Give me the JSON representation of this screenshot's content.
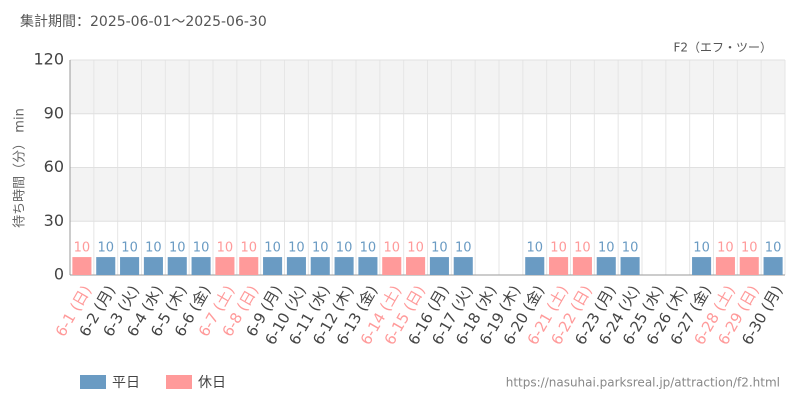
{
  "chart_data": {
    "type": "bar",
    "title": "集計期間：2025-06-01～2025-06-30",
    "subtitle": "F2（エフ・ツー）",
    "y_label": "待ち時間（分） min",
    "source": "https://nasuhai.parksreal.jp/attraction/f2.html",
    "categories": [
      "6-1 (日)",
      "6-2 (月)",
      "6-3 (火)",
      "6-4 (水)",
      "6-5 (木)",
      "6-6 (金)",
      "6-7 (土)",
      "6-8 (日)",
      "6-9 (月)",
      "6-10 (火)",
      "6-11 (水)",
      "6-12 (木)",
      "6-13 (金)",
      "6-14 (土)",
      "6-15 (日)",
      "6-16 (月)",
      "6-17 (火)",
      "6-18 (水)",
      "6-19 (木)",
      "6-20 (金)",
      "6-21 (土)",
      "6-22 (日)",
      "6-23 (月)",
      "6-24 (火)",
      "6-25 (水)",
      "6-26 (木)",
      "6-27 (金)",
      "6-28 (土)",
      "6-29 (日)",
      "6-30 (月)"
    ],
    "series": [
      {
        "name": "平日",
        "color": "#6a9bc3",
        "values": [
          null,
          10,
          10,
          10,
          10,
          10,
          null,
          null,
          10,
          10,
          10,
          10,
          10,
          null,
          null,
          10,
          10,
          null,
          null,
          10,
          null,
          null,
          10,
          10,
          null,
          null,
          10,
          null,
          null,
          10
        ]
      },
      {
        "name": "休日",
        "color": "#ff9a9a",
        "values": [
          10,
          null,
          null,
          null,
          null,
          null,
          10,
          10,
          null,
          null,
          null,
          null,
          null,
          10,
          10,
          null,
          null,
          null,
          null,
          null,
          10,
          10,
          null,
          null,
          null,
          null,
          null,
          10,
          10,
          null
        ]
      }
    ],
    "ylim": [
      0,
      120
    ],
    "yticks": [
      0,
      30,
      60,
      90,
      120
    ],
    "grid": true,
    "legend": "bottom-left"
  }
}
